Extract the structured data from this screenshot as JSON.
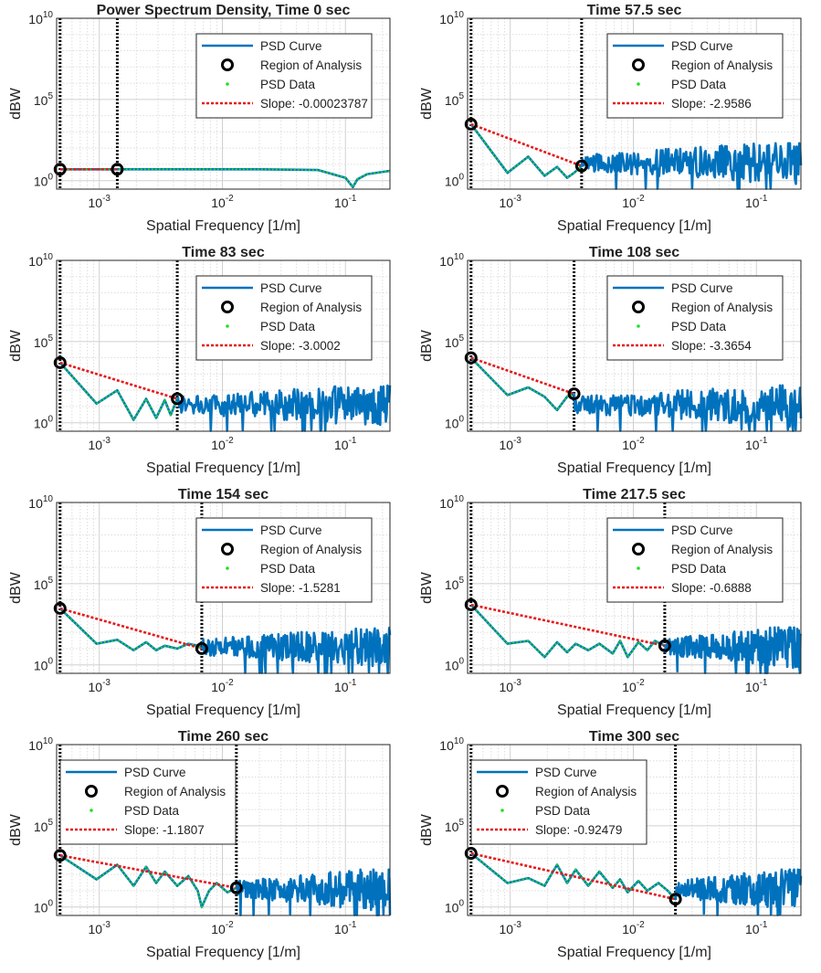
{
  "figure": {
    "colors": {
      "curve": "#0072BD",
      "data": "#22E022",
      "slope": "#E41A1C",
      "marker": "#000000",
      "grid": "#DCDCDC",
      "boundary": "#000000"
    }
  },
  "chart_data": [
    {
      "type": "line",
      "title": "Power Spectrum Density, Time 0 sec",
      "xlabel": "Spatial Frequency [1/m]",
      "ylabel": "dBW",
      "xscale": "log",
      "yscale": "log",
      "xlim": [
        0.00045,
        0.23
      ],
      "ylim": [
        0.3,
        10000000000
      ],
      "xticks": [
        {
          "value": 0.001,
          "label": "10",
          "exp": "-3"
        },
        {
          "value": 0.01,
          "label": "10",
          "exp": "-2"
        },
        {
          "value": 0.1,
          "label": "10",
          "exp": "-1"
        }
      ],
      "yticks": [
        {
          "value": 1,
          "label": "10",
          "exp": "0"
        },
        {
          "value": 100000,
          "label": "10",
          "exp": "5"
        },
        {
          "value": 10000000000,
          "label": "10",
          "exp": "10"
        }
      ],
      "region": {
        "start_freq": 0.00048,
        "end_freq": 0.0014,
        "start_psd": 5,
        "end_psd": 5
      },
      "slope_label": "Slope: -0.00023787",
      "legend": {
        "position": "top-right",
        "entries": [
          "PSD Curve",
          "Region of Analysis",
          "PSD Data",
          "Slope: -0.00023787"
        ]
      },
      "series": [
        {
          "name": "PSD Curve",
          "profile": "flat",
          "x": [
            0.00048,
            0.003,
            0.02,
            0.06,
            0.1,
            0.115,
            0.125,
            0.15,
            0.23
          ],
          "y": [
            5,
            5,
            5,
            4.5,
            1.5,
            0.4,
            1.2,
            2.5,
            4
          ]
        }
      ]
    },
    {
      "type": "line",
      "title": "Time 57.5 sec",
      "xlabel": "Spatial Frequency [1/m]",
      "ylabel": "dBW",
      "xscale": "log",
      "yscale": "log",
      "xlim": [
        0.00045,
        0.23
      ],
      "ylim": [
        0.3,
        10000000000
      ],
      "xticks": [
        {
          "value": 0.001,
          "label": "10",
          "exp": "-3"
        },
        {
          "value": 0.01,
          "label": "10",
          "exp": "-2"
        },
        {
          "value": 0.1,
          "label": "10",
          "exp": "-1"
        }
      ],
      "yticks": [
        {
          "value": 1,
          "label": "10",
          "exp": "0"
        },
        {
          "value": 100000,
          "label": "10",
          "exp": "5"
        },
        {
          "value": 10000000000,
          "label": "10",
          "exp": "10"
        }
      ],
      "region": {
        "start_freq": 0.00048,
        "end_freq": 0.0038,
        "start_psd": 3000,
        "end_psd": 8
      },
      "slope_label": "Slope: -2.9586",
      "legend": {
        "position": "top-right",
        "entries": [
          "PSD Curve",
          "Region of Analysis",
          "PSD Data",
          "Slope: -2.9586"
        ]
      },
      "series": [
        {
          "name": "PSD Curve",
          "profile": "noisy",
          "x": [
            0.00048,
            0.00095,
            0.0014,
            0.0019,
            0.0024,
            0.0029,
            0.0033,
            0.0038
          ],
          "y": [
            3000,
            3,
            30,
            2,
            7,
            1.5,
            3,
            8
          ]
        }
      ]
    },
    {
      "type": "line",
      "title": "Time 83 sec",
      "xlabel": "Spatial Frequency [1/m]",
      "ylabel": "dBW",
      "xscale": "log",
      "yscale": "log",
      "xlim": [
        0.00045,
        0.23
      ],
      "ylim": [
        0.3,
        10000000000
      ],
      "xticks": [
        {
          "value": 0.001,
          "label": "10",
          "exp": "-3"
        },
        {
          "value": 0.01,
          "label": "10",
          "exp": "-2"
        },
        {
          "value": 0.1,
          "label": "10",
          "exp": "-1"
        }
      ],
      "yticks": [
        {
          "value": 1,
          "label": "10",
          "exp": "0"
        },
        {
          "value": 100000,
          "label": "10",
          "exp": "5"
        },
        {
          "value": 10000000000,
          "label": "10",
          "exp": "10"
        }
      ],
      "region": {
        "start_freq": 0.00048,
        "end_freq": 0.0043,
        "start_psd": 5000,
        "end_psd": 30
      },
      "slope_label": "Slope: -3.0002",
      "legend": {
        "position": "top-right",
        "entries": [
          "PSD Curve",
          "Region of Analysis",
          "PSD Data",
          "Slope: -3.0002"
        ]
      },
      "series": [
        {
          "name": "PSD Curve",
          "profile": "noisy",
          "x": [
            0.00048,
            0.00095,
            0.0014,
            0.0019,
            0.0024,
            0.0029,
            0.0034,
            0.0038,
            0.0043
          ],
          "y": [
            5000,
            15,
            100,
            1.5,
            30,
            2,
            25,
            3,
            30
          ]
        }
      ]
    },
    {
      "type": "line",
      "title": "Time 108 sec",
      "xlabel": "Spatial Frequency [1/m]",
      "ylabel": "dBW",
      "xscale": "log",
      "yscale": "log",
      "xlim": [
        0.00045,
        0.23
      ],
      "ylim": [
        0.3,
        10000000000
      ],
      "xticks": [
        {
          "value": 0.001,
          "label": "10",
          "exp": "-3"
        },
        {
          "value": 0.01,
          "label": "10",
          "exp": "-2"
        },
        {
          "value": 0.1,
          "label": "10",
          "exp": "-1"
        }
      ],
      "yticks": [
        {
          "value": 1,
          "label": "10",
          "exp": "0"
        },
        {
          "value": 100000,
          "label": "10",
          "exp": "5"
        },
        {
          "value": 10000000000,
          "label": "10",
          "exp": "10"
        }
      ],
      "region": {
        "start_freq": 0.00048,
        "end_freq": 0.0033,
        "start_psd": 10000,
        "end_psd": 60
      },
      "slope_label": "Slope: -3.3654",
      "legend": {
        "position": "top-right",
        "entries": [
          "PSD Curve",
          "Region of Analysis",
          "PSD Data",
          "Slope: -3.3654"
        ]
      },
      "series": [
        {
          "name": "PSD Curve",
          "profile": "noisy",
          "x": [
            0.00048,
            0.00095,
            0.0014,
            0.0019,
            0.0024,
            0.0029,
            0.0033
          ],
          "y": [
            10000,
            50,
            150,
            40,
            6,
            40,
            60
          ]
        }
      ]
    },
    {
      "type": "line",
      "title": "Time 154 sec",
      "xlabel": "Spatial Frequency [1/m]",
      "ylabel": "dBW",
      "xscale": "log",
      "yscale": "log",
      "xlim": [
        0.00045,
        0.23
      ],
      "ylim": [
        0.3,
        10000000000
      ],
      "xticks": [
        {
          "value": 0.001,
          "label": "10",
          "exp": "-3"
        },
        {
          "value": 0.01,
          "label": "10",
          "exp": "-2"
        },
        {
          "value": 0.1,
          "label": "10",
          "exp": "-1"
        }
      ],
      "yticks": [
        {
          "value": 1,
          "label": "10",
          "exp": "0"
        },
        {
          "value": 100000,
          "label": "10",
          "exp": "5"
        },
        {
          "value": 10000000000,
          "label": "10",
          "exp": "10"
        }
      ],
      "region": {
        "start_freq": 0.00048,
        "end_freq": 0.0068,
        "start_psd": 3000,
        "end_psd": 10
      },
      "slope_label": "Slope: -1.5281",
      "legend": {
        "position": "top-right",
        "entries": [
          "PSD Curve",
          "Region of Analysis",
          "PSD Data",
          "Slope: -1.5281"
        ]
      },
      "series": [
        {
          "name": "PSD Curve",
          "profile": "noisy",
          "x": [
            0.00048,
            0.00095,
            0.0014,
            0.0019,
            0.0024,
            0.0029,
            0.0034,
            0.0043,
            0.0053,
            0.0063,
            0.0068
          ],
          "y": [
            3000,
            20,
            35,
            8,
            25,
            8,
            15,
            10,
            20,
            15,
            10
          ]
        }
      ]
    },
    {
      "type": "line",
      "title": "Time 217.5 sec",
      "xlabel": "Spatial Frequency [1/m]",
      "ylabel": "dBW",
      "xscale": "log",
      "yscale": "log",
      "xlim": [
        0.00045,
        0.23
      ],
      "ylim": [
        0.3,
        10000000000
      ],
      "xticks": [
        {
          "value": 0.001,
          "label": "10",
          "exp": "-3"
        },
        {
          "value": 0.01,
          "label": "10",
          "exp": "-2"
        },
        {
          "value": 0.1,
          "label": "10",
          "exp": "-1"
        }
      ],
      "yticks": [
        {
          "value": 1,
          "label": "10",
          "exp": "0"
        },
        {
          "value": 100000,
          "label": "10",
          "exp": "5"
        },
        {
          "value": 10000000000,
          "label": "10",
          "exp": "10"
        }
      ],
      "region": {
        "start_freq": 0.00048,
        "end_freq": 0.018,
        "start_psd": 5000,
        "end_psd": 15
      },
      "slope_label": "Slope: -0.6888",
      "legend": {
        "position": "top-right",
        "entries": [
          "PSD Curve",
          "Region of Analysis",
          "PSD Data",
          "Slope: -0.6888"
        ]
      },
      "series": [
        {
          "name": "PSD Curve",
          "profile": "noisy",
          "x": [
            0.00048,
            0.00095,
            0.0014,
            0.0019,
            0.0024,
            0.0029,
            0.0034,
            0.0043,
            0.0053,
            0.0068,
            0.0078,
            0.009,
            0.011,
            0.013,
            0.015,
            0.018
          ],
          "y": [
            5000,
            20,
            30,
            3,
            25,
            6,
            20,
            8,
            20,
            5,
            30,
            3,
            25,
            8,
            30,
            15
          ]
        }
      ]
    },
    {
      "type": "line",
      "title": "Time 260 sec",
      "xlabel": "Spatial Frequency [1/m]",
      "ylabel": "dBW",
      "xscale": "log",
      "yscale": "log",
      "xlim": [
        0.00045,
        0.23
      ],
      "ylim": [
        0.3,
        10000000000
      ],
      "xticks": [
        {
          "value": 0.001,
          "label": "10",
          "exp": "-3"
        },
        {
          "value": 0.01,
          "label": "10",
          "exp": "-2"
        },
        {
          "value": 0.1,
          "label": "10",
          "exp": "-1"
        }
      ],
      "yticks": [
        {
          "value": 1,
          "label": "10",
          "exp": "0"
        },
        {
          "value": 100000,
          "label": "10",
          "exp": "5"
        },
        {
          "value": 10000000000,
          "label": "10",
          "exp": "10"
        }
      ],
      "region": {
        "start_freq": 0.00048,
        "end_freq": 0.013,
        "start_psd": 1500,
        "end_psd": 15
      },
      "slope_label": "Slope: -1.1807",
      "legend": {
        "position": "top-left",
        "entries": [
          "PSD Curve",
          "Region of Analysis",
          "PSD Data",
          "Slope: -1.1807"
        ]
      },
      "series": [
        {
          "name": "PSD Curve",
          "profile": "noisy",
          "x": [
            0.00048,
            0.00095,
            0.0014,
            0.0019,
            0.0024,
            0.0029,
            0.0034,
            0.0043,
            0.0053,
            0.0063,
            0.0068,
            0.0078,
            0.009,
            0.011,
            0.013
          ],
          "y": [
            1500,
            50,
            400,
            20,
            300,
            30,
            150,
            20,
            80,
            10,
            1,
            10,
            30,
            8,
            15
          ]
        }
      ]
    },
    {
      "type": "line",
      "title": "Time 300 sec",
      "xlabel": "Spatial Frequency [1/m]",
      "ylabel": "dBW",
      "xscale": "log",
      "yscale": "log",
      "xlim": [
        0.00045,
        0.23
      ],
      "ylim": [
        0.3,
        10000000000
      ],
      "xticks": [
        {
          "value": 0.001,
          "label": "10",
          "exp": "-3"
        },
        {
          "value": 0.01,
          "label": "10",
          "exp": "-2"
        },
        {
          "value": 0.1,
          "label": "10",
          "exp": "-1"
        }
      ],
      "yticks": [
        {
          "value": 1,
          "label": "10",
          "exp": "0"
        },
        {
          "value": 100000,
          "label": "10",
          "exp": "5"
        },
        {
          "value": 10000000000,
          "label": "10",
          "exp": "10"
        }
      ],
      "region": {
        "start_freq": 0.00048,
        "end_freq": 0.022,
        "start_psd": 2000,
        "end_psd": 3
      },
      "slope_label": "Slope: -0.92479",
      "legend": {
        "position": "top-left",
        "entries": [
          "PSD Curve",
          "Region of Analysis",
          "PSD Data",
          "Slope: -0.92479"
        ]
      },
      "series": [
        {
          "name": "PSD Curve",
          "profile": "noisy",
          "x": [
            0.00048,
            0.00095,
            0.0014,
            0.0019,
            0.0024,
            0.0029,
            0.0034,
            0.0043,
            0.0053,
            0.0068,
            0.0078,
            0.009,
            0.011,
            0.013,
            0.016,
            0.019,
            0.022
          ],
          "y": [
            2000,
            30,
            60,
            20,
            400,
            30,
            200,
            20,
            150,
            15,
            50,
            8,
            40,
            10,
            30,
            10,
            3
          ]
        }
      ]
    }
  ]
}
